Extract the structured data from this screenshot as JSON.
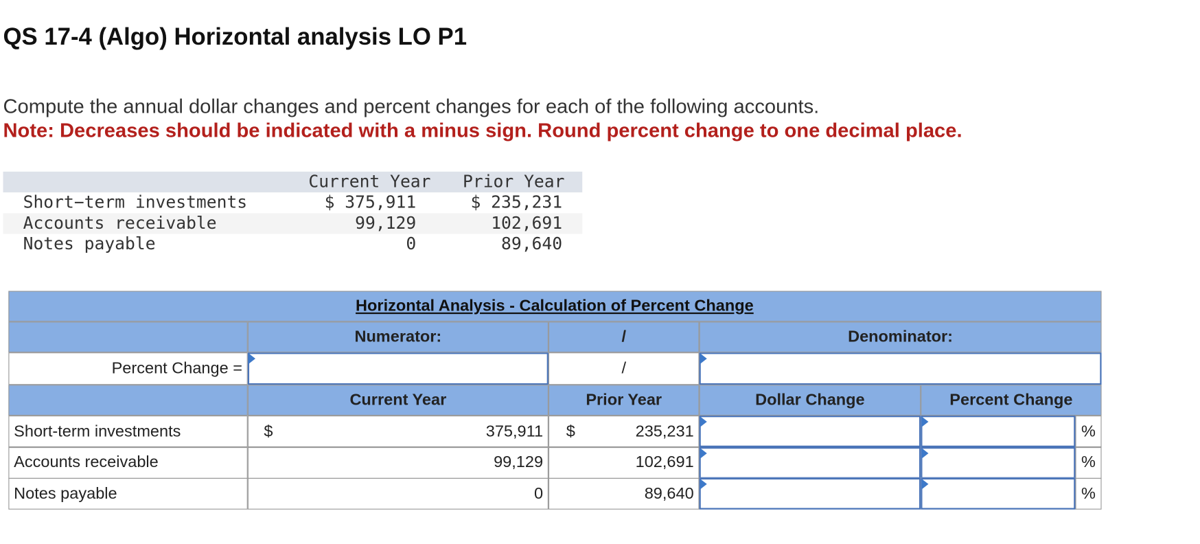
{
  "header": {
    "title": "QS 17-4 (Algo) Horizontal analysis LO P1"
  },
  "instructions": {
    "text": "Compute the annual dollar changes and percent changes for each of the following accounts.",
    "note": "Note: Decreases should be indicated with a minus sign. Round percent change to one decimal place."
  },
  "given": {
    "columns": [
      "Current Year",
      "Prior Year"
    ],
    "rows": [
      [
        "Short−term investments",
        "$ 375,911",
        "$ 235,231"
      ],
      [
        "Accounts receivable",
        "99,129",
        "102,691"
      ],
      [
        "Notes payable",
        "0",
        "89,640"
      ]
    ]
  },
  "table": {
    "title": "Horizontal Analysis - Calculation of Percent Change",
    "numerator_label": "Numerator:",
    "slash": "/",
    "denominator_label": "Denominator:",
    "formula_label": "Percent Change =",
    "columns": [
      "Current Year",
      "Prior Year",
      "Dollar Change",
      "Percent Change"
    ],
    "currency": "$",
    "percent": "%",
    "rows": [
      [
        "Short-term investments",
        "375,911",
        "235,231"
      ],
      [
        "Accounts receivable",
        "99,129",
        "102,691"
      ],
      [
        "Notes payable",
        "0",
        "89,640"
      ]
    ]
  }
}
